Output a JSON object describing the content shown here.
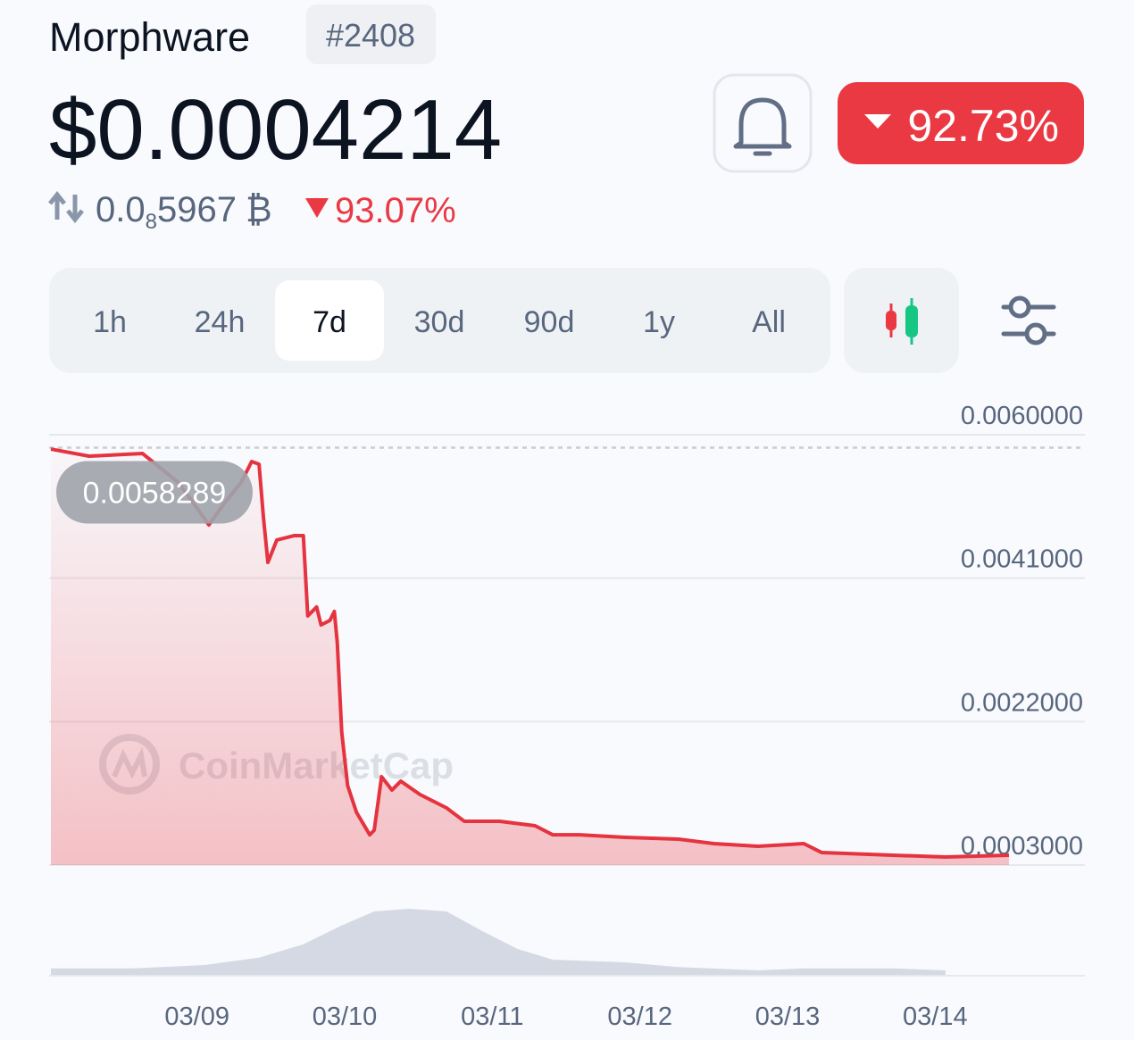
{
  "header": {
    "name": "Morphware",
    "rank": "#2408",
    "price": "$0.0004214",
    "change": "92.73%",
    "btc_price_lead": "0.0",
    "btc_price_subscript": "8",
    "btc_price_digits": "5967",
    "btc_symbol": "₿",
    "btc_change": "93.07%"
  },
  "tabs": {
    "items": [
      "1h",
      "24h",
      "7d",
      "30d",
      "90d",
      "1y",
      "All"
    ],
    "active": 2
  },
  "chart_data": {
    "type": "line",
    "color": "#e5333f",
    "watermark": "CoinMarketCap",
    "reference_value": 0.0058289,
    "reference_label": "0.0058289",
    "x": [
      -0.99,
      -0.73,
      -0.37,
      -0.28,
      -0.13,
      -0.04,
      0.08,
      0.18,
      0.3,
      0.37,
      0.42,
      0.45,
      0.48,
      0.54,
      0.66,
      0.72,
      0.75,
      0.81,
      0.84,
      0.9,
      0.93,
      0.95,
      0.98,
      1.02,
      1.08,
      1.17,
      1.2,
      1.25,
      1.32,
      1.38,
      1.51,
      1.69,
      1.81,
      2.05,
      2.29,
      2.41,
      2.59,
      2.9,
      3.26,
      3.5,
      3.8,
      4.11,
      4.23,
      4.71,
      5.07,
      5.5
    ],
    "values": [
      0.00581,
      0.005716,
      0.005752,
      0.00561,
      0.005373,
      0.005137,
      0.004806,
      0.005078,
      0.005373,
      0.005645,
      0.00561,
      0.0049,
      0.004309,
      0.004605,
      0.004664,
      0.004664,
      0.0036,
      0.003718,
      0.003481,
      0.00354,
      0.003659,
      0.003245,
      0.002062,
      0.001352,
      0.000998,
      0.0007,
      0.000761,
      0.00147,
      0.001293,
      0.001411,
      0.001234,
      0.001057,
      0.00088,
      0.00088,
      0.00082,
      0.0007,
      0.0007,
      0.000667,
      0.000643,
      0.000584,
      0.000548,
      0.000584,
      0.000466,
      0.00043,
      0.000407,
      0.00043
    ],
    "xlim": [
      -0.99,
      5.5
    ],
    "xticks": [
      {
        "value": 0,
        "label": "03/09"
      },
      {
        "value": 1,
        "label": "03/10"
      },
      {
        "value": 2,
        "label": "03/11"
      },
      {
        "value": 3,
        "label": "03/12"
      },
      {
        "value": 4,
        "label": "03/13"
      },
      {
        "value": 5,
        "label": "03/14"
      }
    ],
    "ylim": [
      0.0003,
      0.006
    ],
    "yticks": [
      {
        "value": 0.006,
        "label": "0.0060000"
      },
      {
        "value": 0.0041,
        "label": "0.0041000"
      },
      {
        "value": 0.0022,
        "label": "0.0022000"
      },
      {
        "value": 0.0003,
        "label": "0.0003000"
      }
    ],
    "grid": true,
    "volume": {
      "color": "#d5d9e3",
      "x": [
        -0.99,
        -0.43,
        0.05,
        0.42,
        0.72,
        0.96,
        1.2,
        1.44,
        1.69,
        1.93,
        2.17,
        2.41,
        2.9,
        3.26,
        3.8,
        4.11,
        4.71,
        5.07
      ],
      "values": [
        11,
        11,
        16,
        27,
        47,
        73,
        96,
        100,
        96,
        67,
        40,
        24,
        20,
        13,
        8,
        11,
        11,
        8
      ]
    }
  }
}
